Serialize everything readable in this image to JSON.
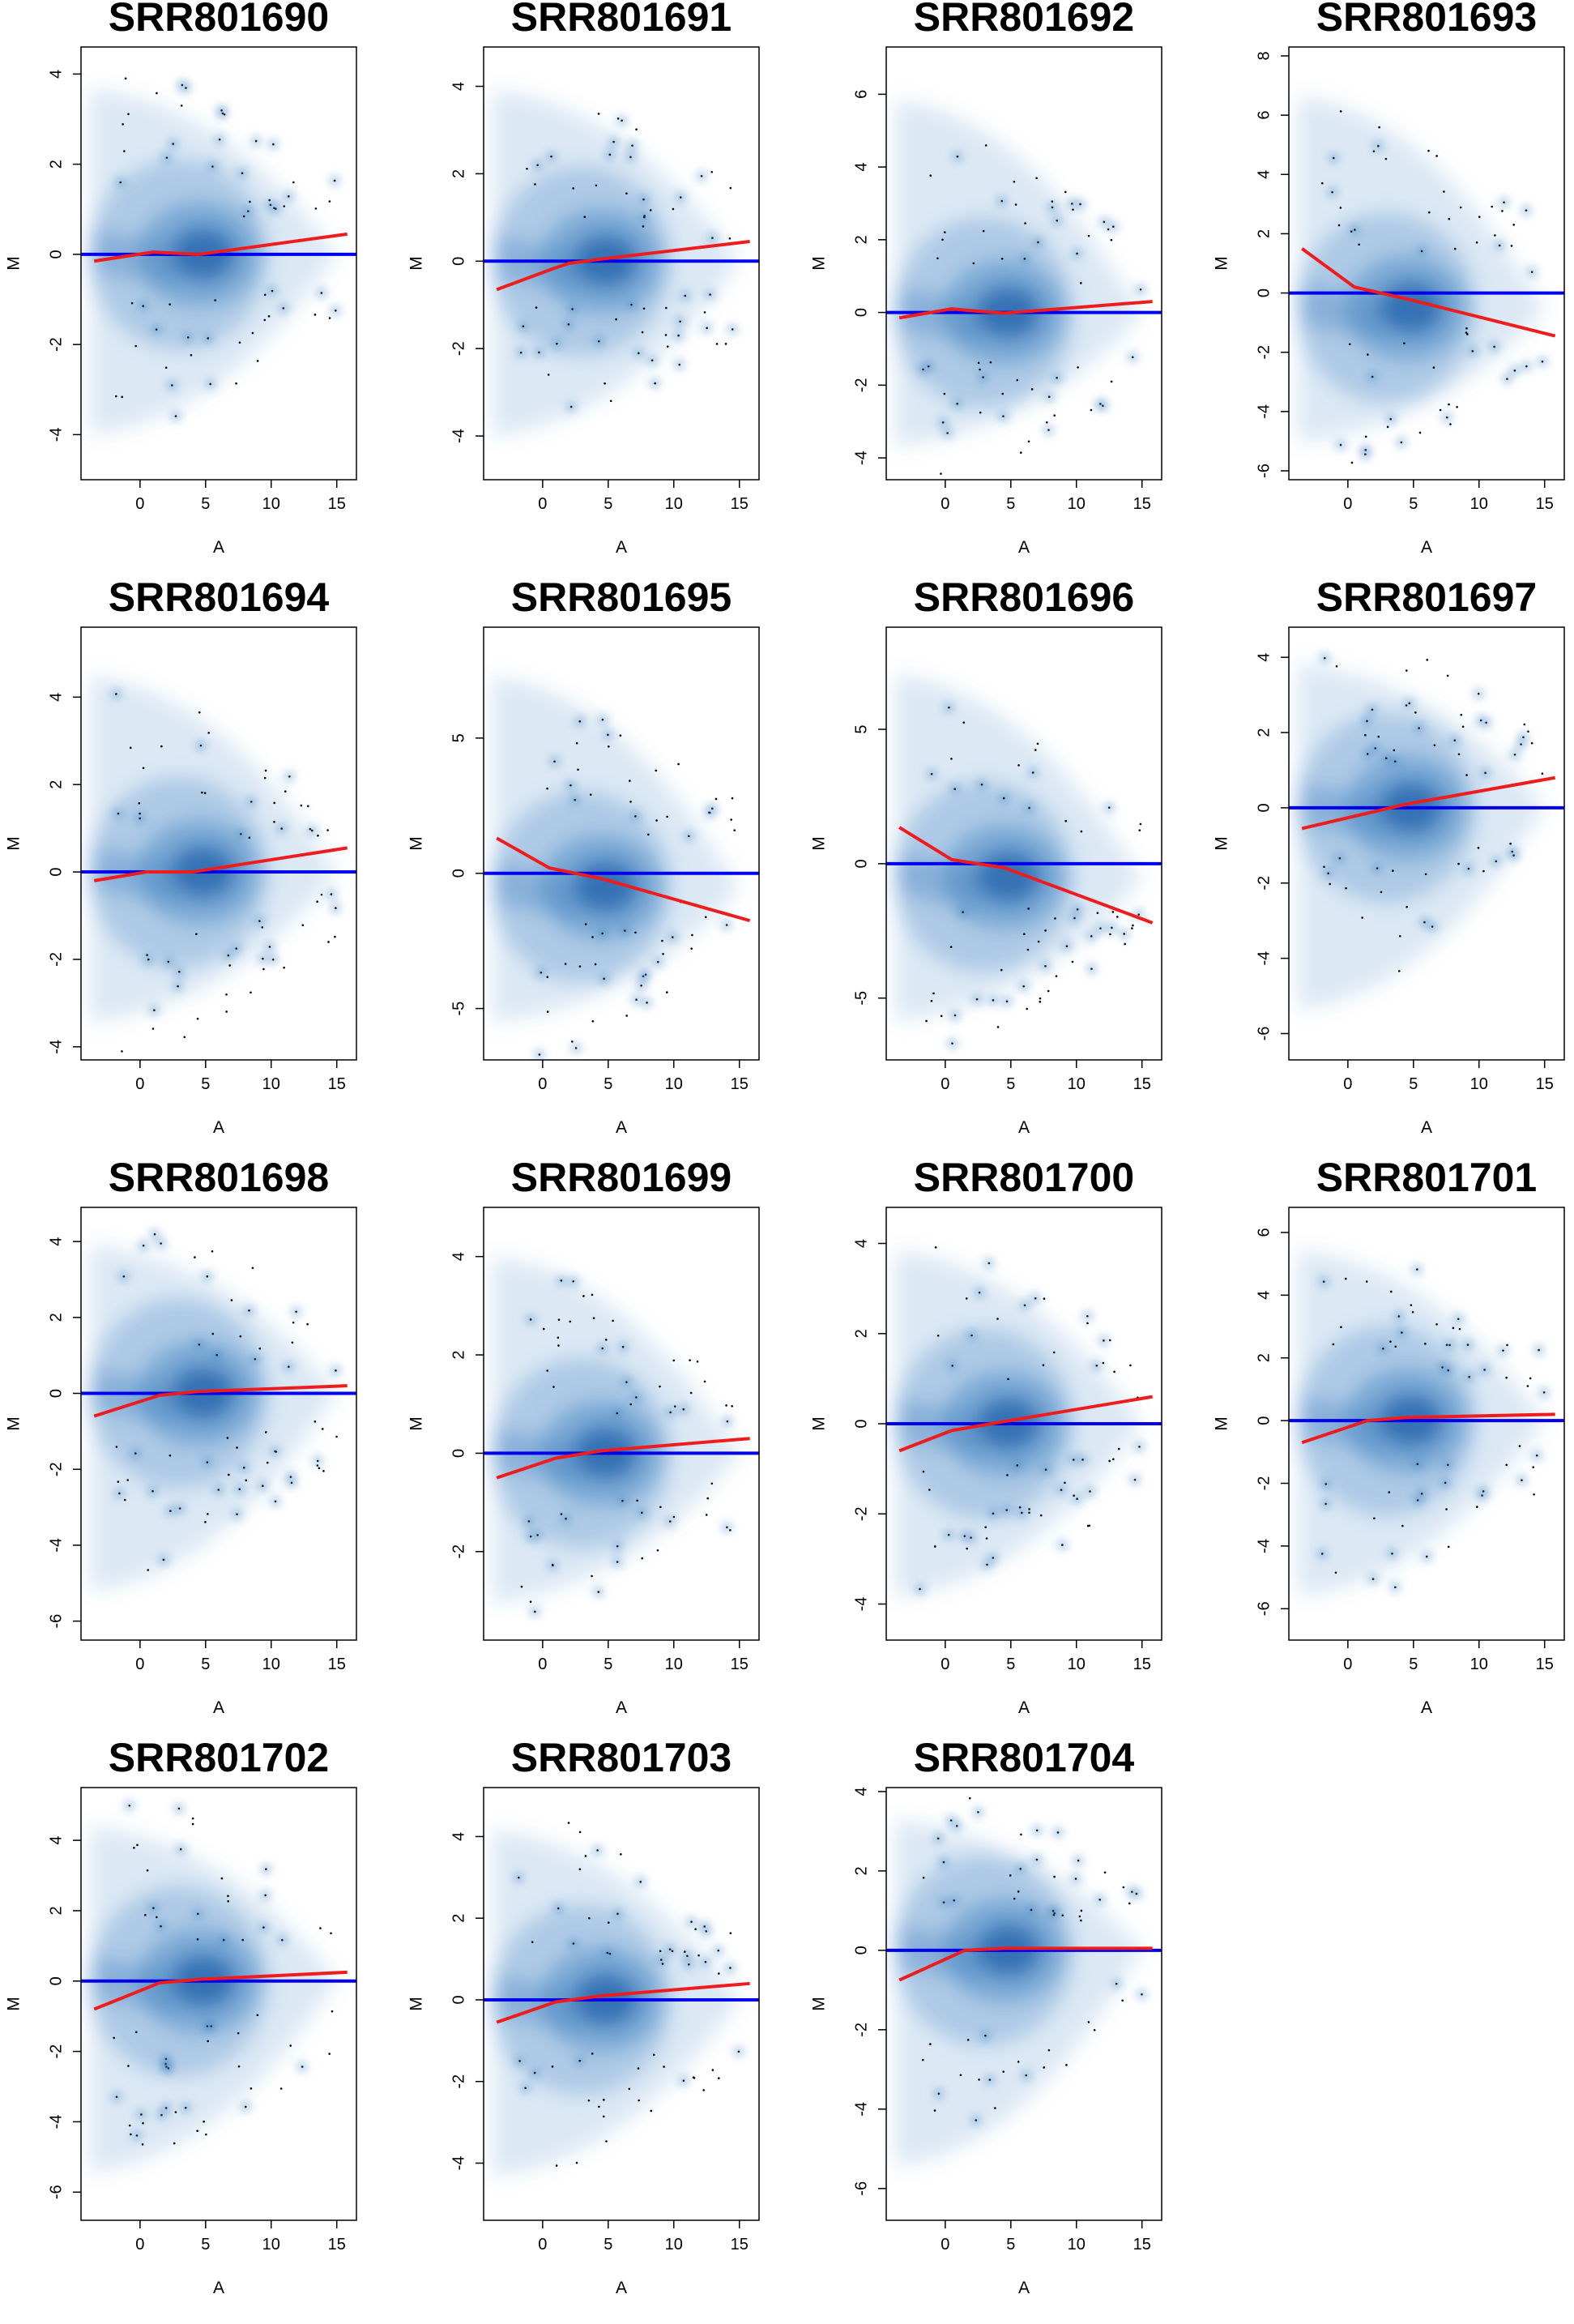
{
  "chart_data": [
    {
      "type": "scatter",
      "title": "SRR801690",
      "xlabel": "A",
      "ylabel": "M",
      "xlim": [
        -4.5,
        16.5
      ],
      "ylim": [
        -5.0,
        4.6
      ],
      "xticks": [
        0,
        5,
        10,
        15
      ],
      "yticks": [
        -4,
        -2,
        0,
        2,
        4
      ],
      "series": [
        {
          "name": "",
          "x": [
            -3.5,
            1,
            4.5,
            15.8
          ],
          "y": [
            -0.15,
            0.05,
            0,
            0.45
          ]
        }
      ],
      "hline": 0,
      "density_center": [
        4.5,
        0.0
      ],
      "density_color": "#3b7fc1",
      "loess_color": "#ee1c1c",
      "hline_color": "#0000ee",
      "grid": false
    },
    {
      "type": "scatter",
      "title": "SRR801691",
      "xlabel": "A",
      "ylabel": "M",
      "xlim": [
        -4.5,
        16.5
      ],
      "ylim": [
        -5.0,
        4.9
      ],
      "xticks": [
        0,
        5,
        10,
        15
      ],
      "yticks": [
        -4,
        -2,
        0,
        2,
        4
      ],
      "series": [
        {
          "name": "",
          "x": [
            -3.5,
            1,
            2,
            4.5,
            15.8
          ],
          "y": [
            -0.65,
            -0.15,
            -0.05,
            0.05,
            0.45
          ]
        }
      ],
      "hline": 0,
      "density_center": [
        4.5,
        0.0
      ],
      "density_color": "#3b7fc1",
      "loess_color": "#ee1c1c",
      "hline_color": "#0000ee",
      "grid": false
    },
    {
      "type": "scatter",
      "title": "SRR801692",
      "xlabel": "A",
      "ylabel": "M",
      "xlim": [
        -4.5,
        16.5
      ],
      "ylim": [
        -4.6,
        7.3
      ],
      "xticks": [
        0,
        5,
        10,
        15
      ],
      "yticks": [
        -4,
        -2,
        0,
        2,
        4,
        6
      ],
      "series": [
        {
          "name": "",
          "x": [
            -3.5,
            0.5,
            2,
            4.5,
            15.8
          ],
          "y": [
            -0.15,
            0.1,
            0.05,
            -0.02,
            0.3
          ]
        }
      ],
      "hline": 0,
      "density_center": [
        4.5,
        0.0
      ],
      "density_color": "#3b7fc1",
      "loess_color": "#ee1c1c",
      "hline_color": "#0000ee",
      "grid": false
    },
    {
      "type": "scatter",
      "title": "SRR801693",
      "xlabel": "A",
      "ylabel": "M",
      "xlim": [
        -4.5,
        16.5
      ],
      "ylim": [
        -6.3,
        8.3
      ],
      "xticks": [
        0,
        5,
        10,
        15
      ],
      "yticks": [
        -6,
        -4,
        -2,
        0,
        2,
        4,
        6,
        8
      ],
      "series": [
        {
          "name": "",
          "x": [
            -3.5,
            0.5,
            4.5,
            15.8
          ],
          "y": [
            1.5,
            0.2,
            -0.2,
            -1.45
          ]
        }
      ],
      "hline": 0,
      "density_center": [
        4.5,
        -0.5
      ],
      "density_color": "#3b7fc1",
      "loess_color": "#ee1c1c",
      "hline_color": "#0000ee",
      "grid": false
    },
    {
      "type": "scatter",
      "title": "SRR801694",
      "xlabel": "A",
      "ylabel": "M",
      "xlim": [
        -4.5,
        16.5
      ],
      "ylim": [
        -4.3,
        5.6
      ],
      "xticks": [
        0,
        5,
        10,
        15
      ],
      "yticks": [
        -4,
        -2,
        0,
        2,
        4
      ],
      "series": [
        {
          "name": "",
          "x": [
            -3.5,
            0.5,
            4,
            15.8
          ],
          "y": [
            -0.2,
            0,
            0,
            0.55
          ]
        }
      ],
      "hline": 0,
      "density_center": [
        4.5,
        0.0
      ],
      "density_color": "#3b7fc1",
      "loess_color": "#ee1c1c",
      "hline_color": "#0000ee",
      "grid": false
    },
    {
      "type": "scatter",
      "title": "SRR801695",
      "xlabel": "A",
      "ylabel": "M",
      "xlim": [
        -4.5,
        16.5
      ],
      "ylim": [
        -6.9,
        9.1
      ],
      "xticks": [
        0,
        5,
        10,
        15
      ],
      "yticks": [
        -5,
        0,
        5
      ],
      "series": [
        {
          "name": "",
          "x": [
            -3.5,
            0.5,
            4.5,
            15.8
          ],
          "y": [
            1.3,
            0.2,
            -0.2,
            -1.75
          ]
        }
      ],
      "hline": 0,
      "density_center": [
        4.5,
        -0.5
      ],
      "density_color": "#3b7fc1",
      "loess_color": "#ee1c1c",
      "hline_color": "#0000ee",
      "grid": false
    },
    {
      "type": "scatter",
      "title": "SRR801696",
      "xlabel": "A",
      "ylabel": "M",
      "xlim": [
        -4.5,
        16.5
      ],
      "ylim": [
        -7.3,
        8.8
      ],
      "xticks": [
        0,
        5,
        10,
        15
      ],
      "yticks": [
        -5,
        0,
        5
      ],
      "series": [
        {
          "name": "",
          "x": [
            -3.5,
            0.5,
            4.5,
            15.8
          ],
          "y": [
            1.35,
            0.15,
            -0.15,
            -2.2
          ]
        }
      ],
      "hline": 0,
      "density_center": [
        4.5,
        -0.5
      ],
      "density_color": "#3b7fc1",
      "loess_color": "#ee1c1c",
      "hline_color": "#0000ee",
      "grid": false
    },
    {
      "type": "scatter",
      "title": "SRR801697",
      "xlabel": "A",
      "ylabel": "M",
      "xlim": [
        -4.5,
        16.5
      ],
      "ylim": [
        -6.7,
        4.8
      ],
      "xticks": [
        0,
        5,
        10,
        15
      ],
      "yticks": [
        -6,
        -4,
        -2,
        0,
        2,
        4
      ],
      "series": [
        {
          "name": "",
          "x": [
            -3.5,
            4.5,
            15.8
          ],
          "y": [
            -0.55,
            0.1,
            0.8
          ]
        }
      ],
      "hline": 0,
      "density_center": [
        4.5,
        0.0
      ],
      "density_color": "#3b7fc1",
      "loess_color": "#ee1c1c",
      "hline_color": "#0000ee",
      "grid": false
    },
    {
      "type": "scatter",
      "title": "SRR801698",
      "xlabel": "A",
      "ylabel": "M",
      "xlim": [
        -4.5,
        16.5
      ],
      "ylim": [
        -6.5,
        4.9
      ],
      "xticks": [
        0,
        5,
        10,
        15
      ],
      "yticks": [
        -6,
        -4,
        -2,
        0,
        2,
        4
      ],
      "series": [
        {
          "name": "",
          "x": [
            -3.5,
            1.5,
            4.5,
            15.8
          ],
          "y": [
            -0.6,
            -0.05,
            0.05,
            0.2
          ]
        }
      ],
      "hline": 0,
      "density_center": [
        4.5,
        0.0
      ],
      "density_color": "#3b7fc1",
      "loess_color": "#ee1c1c",
      "hline_color": "#0000ee",
      "grid": false
    },
    {
      "type": "scatter",
      "title": "SRR801699",
      "xlabel": "A",
      "ylabel": "M",
      "xlim": [
        -4.5,
        16.5
      ],
      "ylim": [
        -3.8,
        5.0
      ],
      "xticks": [
        0,
        5,
        10,
        15
      ],
      "yticks": [
        -2,
        0,
        2,
        4
      ],
      "series": [
        {
          "name": "",
          "x": [
            -3.5,
            1,
            4.5,
            15.8
          ],
          "y": [
            -0.5,
            -0.1,
            0.05,
            0.3
          ]
        }
      ],
      "hline": 0,
      "density_center": [
        4.5,
        0.0
      ],
      "density_color": "#3b7fc1",
      "loess_color": "#ee1c1c",
      "hline_color": "#0000ee",
      "grid": false
    },
    {
      "type": "scatter",
      "title": "SRR801700",
      "xlabel": "A",
      "ylabel": "M",
      "xlim": [
        -4.5,
        16.5
      ],
      "ylim": [
        -4.8,
        4.8
      ],
      "xticks": [
        0,
        5,
        10,
        15
      ],
      "yticks": [
        -4,
        -2,
        0,
        2,
        4
      ],
      "series": [
        {
          "name": "",
          "x": [
            -3.5,
            0.5,
            4.5,
            15.8
          ],
          "y": [
            -0.6,
            -0.15,
            0.05,
            0.6
          ]
        }
      ],
      "hline": 0,
      "density_center": [
        4.5,
        0.0
      ],
      "density_color": "#3b7fc1",
      "loess_color": "#ee1c1c",
      "hline_color": "#0000ee",
      "grid": false
    },
    {
      "type": "scatter",
      "title": "SRR801701",
      "xlabel": "A",
      "ylabel": "M",
      "xlim": [
        -4.5,
        16.5
      ],
      "ylim": [
        -7.0,
        6.8
      ],
      "xticks": [
        0,
        5,
        10,
        15
      ],
      "yticks": [
        -6,
        -4,
        -2,
        0,
        2,
        4,
        6
      ],
      "series": [
        {
          "name": "",
          "x": [
            -3.5,
            1.5,
            4.5,
            15.8
          ],
          "y": [
            -0.7,
            0,
            0.1,
            0.2
          ]
        }
      ],
      "hline": 0,
      "density_center": [
        4.5,
        0.0
      ],
      "density_color": "#3b7fc1",
      "loess_color": "#ee1c1c",
      "hline_color": "#0000ee",
      "grid": false
    },
    {
      "type": "scatter",
      "title": "SRR801702",
      "xlabel": "A",
      "ylabel": "M",
      "xlim": [
        -4.5,
        16.5
      ],
      "ylim": [
        -6.8,
        5.5
      ],
      "xticks": [
        0,
        5,
        10,
        15
      ],
      "yticks": [
        -6,
        -4,
        -2,
        0,
        2,
        4
      ],
      "series": [
        {
          "name": "",
          "x": [
            -3.5,
            1.5,
            4.5,
            15.8
          ],
          "y": [
            -0.8,
            -0.05,
            0.05,
            0.25
          ]
        }
      ],
      "hline": 0,
      "density_center": [
        4.5,
        0.0
      ],
      "density_color": "#3b7fc1",
      "loess_color": "#ee1c1c",
      "hline_color": "#0000ee",
      "grid": false
    },
    {
      "type": "scatter",
      "title": "SRR801703",
      "xlabel": "A",
      "ylabel": "M",
      "xlim": [
        -4.5,
        16.5
      ],
      "ylim": [
        -5.4,
        5.2
      ],
      "xticks": [
        0,
        5,
        10,
        15
      ],
      "yticks": [
        -4,
        -2,
        0,
        2,
        4
      ],
      "series": [
        {
          "name": "",
          "x": [
            -3.5,
            1,
            4.5,
            15.8
          ],
          "y": [
            -0.55,
            -0.05,
            0.1,
            0.4
          ]
        }
      ],
      "hline": 0,
      "density_center": [
        4.5,
        0.0
      ],
      "density_color": "#3b7fc1",
      "loess_color": "#ee1c1c",
      "hline_color": "#0000ee",
      "grid": false
    },
    {
      "type": "scatter",
      "title": "SRR801704",
      "xlabel": "A",
      "ylabel": "M",
      "xlim": [
        -4.5,
        16.5
      ],
      "ylim": [
        -6.8,
        4.1
      ],
      "xticks": [
        0,
        5,
        10,
        15
      ],
      "yticks": [
        -6,
        -4,
        -2,
        0,
        2,
        4
      ],
      "series": [
        {
          "name": "",
          "x": [
            -3.5,
            1.5,
            4.5,
            15.8
          ],
          "y": [
            -0.75,
            0,
            0.05,
            0.05
          ]
        }
      ],
      "hline": 0,
      "density_center": [
        4.5,
        0.0
      ],
      "density_color": "#3b7fc1",
      "loess_color": "#ee1c1c",
      "hline_color": "#0000ee",
      "grid": false
    }
  ]
}
